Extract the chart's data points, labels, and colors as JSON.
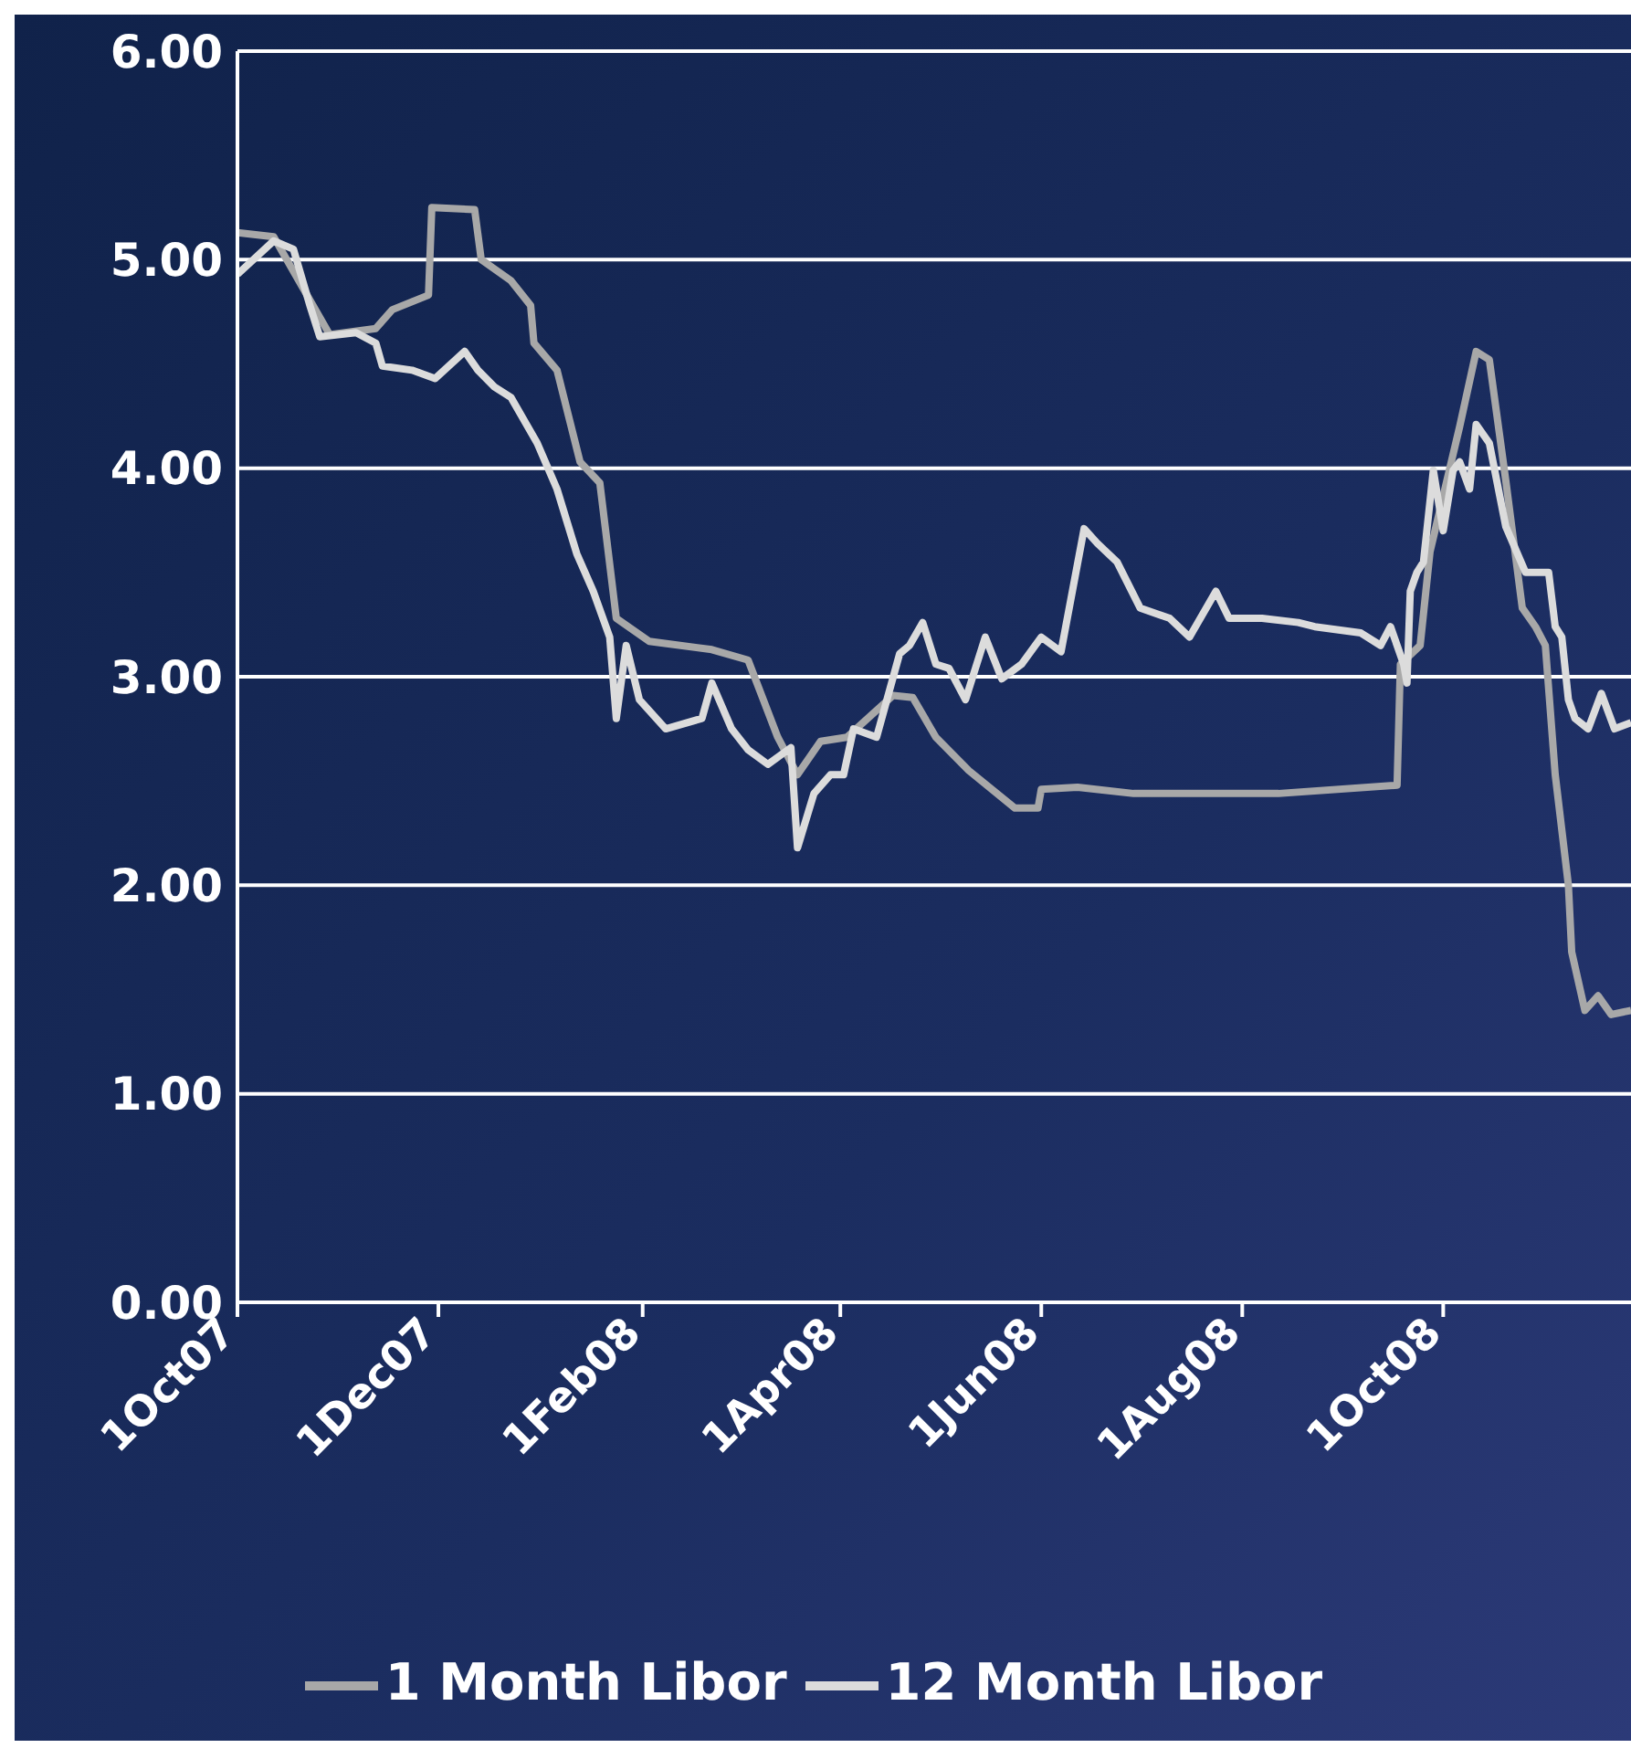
{
  "chart_data": {
    "type": "line",
    "xlim": [
      "2007-10-01",
      "2008-11-27"
    ],
    "ylim": [
      0,
      6
    ],
    "xticks": [
      {
        "value": "2007-10-01",
        "label": "1Oct07"
      },
      {
        "value": "2007-12-01",
        "label": "1Dec07"
      },
      {
        "value": "2008-02-01",
        "label": "1Feb08"
      },
      {
        "value": "2008-04-01",
        "label": "1Apr08"
      },
      {
        "value": "2008-06-01",
        "label": "1Jun08"
      },
      {
        "value": "2008-08-01",
        "label": "1Aug08"
      },
      {
        "value": "2008-10-01",
        "label": "1Oct08"
      }
    ],
    "yticks": [
      {
        "value": 0,
        "label": "0.00"
      },
      {
        "value": 1,
        "label": "1.00"
      },
      {
        "value": 2,
        "label": "2.00"
      },
      {
        "value": 3,
        "label": "3.00"
      },
      {
        "value": 4,
        "label": "4.00"
      },
      {
        "value": 5,
        "label": "5.00"
      },
      {
        "value": 6,
        "label": "6.00"
      }
    ],
    "grid": "y",
    "legend": "bottom",
    "series": [
      {
        "name": "1 Month Libor",
        "color": "#a8a8a8",
        "x": [
          "2007-10-01",
          "2007-10-12",
          "2007-10-29",
          "2007-11-12",
          "2007-11-17",
          "2007-11-28",
          "2007-11-29",
          "2007-12-12",
          "2007-12-14",
          "2007-12-23",
          "2007-12-29",
          "2007-12-30",
          "2008-01-06",
          "2008-01-13",
          "2008-01-19",
          "2008-01-24",
          "2008-02-03",
          "2008-02-22",
          "2008-03-04",
          "2008-03-13",
          "2008-03-19",
          "2008-03-26",
          "2008-04-03",
          "2008-04-17",
          "2008-04-23",
          "2008-04-30",
          "2008-05-10",
          "2008-05-24",
          "2008-05-31",
          "2008-06-01",
          "2008-06-12",
          "2008-06-29",
          "2008-08-12",
          "2008-09-17",
          "2008-09-18",
          "2008-09-24",
          "2008-09-27",
          "2008-10-06",
          "2008-10-11",
          "2008-10-15",
          "2008-10-20",
          "2008-10-25",
          "2008-10-29",
          "2008-11-01",
          "2008-11-04",
          "2008-11-08",
          "2008-11-09",
          "2008-11-13",
          "2008-11-17",
          "2008-11-21",
          "2008-11-27"
        ],
        "values": [
          5.13,
          5.11,
          4.64,
          4.67,
          4.76,
          4.83,
          5.25,
          5.24,
          5.0,
          4.9,
          4.78,
          4.6,
          4.47,
          4.03,
          3.93,
          3.28,
          3.17,
          3.13,
          3.08,
          2.71,
          2.53,
          2.69,
          2.71,
          2.91,
          2.9,
          2.71,
          2.55,
          2.37,
          2.37,
          2.46,
          2.47,
          2.44,
          2.44,
          2.48,
          3.06,
          3.15,
          3.6,
          4.2,
          4.56,
          4.52,
          3.94,
          3.33,
          3.24,
          3.15,
          2.53,
          2.0,
          1.68,
          1.4,
          1.47,
          1.38,
          1.4
        ]
      },
      {
        "name": "12 Month Libor",
        "color": "#dcdcdc",
        "x": [
          "2007-10-01",
          "2007-10-12",
          "2007-10-18",
          "2007-10-23",
          "2007-10-26",
          "2007-11-06",
          "2007-11-12",
          "2007-11-14",
          "2007-11-23",
          "2007-11-30",
          "2007-12-09",
          "2007-12-13",
          "2007-12-18",
          "2007-12-23",
          "2007-12-31",
          "2008-01-06",
          "2008-01-12",
          "2008-01-17",
          "2008-01-22",
          "2008-01-24",
          "2008-01-27",
          "2008-01-31",
          "2008-02-08",
          "2008-02-19",
          "2008-02-22",
          "2008-02-28",
          "2008-03-04",
          "2008-03-10",
          "2008-03-17",
          "2008-03-19",
          "2008-03-24",
          "2008-03-29",
          "2008-04-02",
          "2008-04-05",
          "2008-04-12",
          "2008-04-19",
          "2008-04-22",
          "2008-04-26",
          "2008-04-30",
          "2008-05-04",
          "2008-05-09",
          "2008-05-15",
          "2008-05-20",
          "2008-05-26",
          "2008-06-01",
          "2008-06-07",
          "2008-06-14",
          "2008-06-18",
          "2008-06-24",
          "2008-07-01",
          "2008-07-10",
          "2008-07-16",
          "2008-07-24",
          "2008-07-28",
          "2008-08-07",
          "2008-08-18",
          "2008-08-23",
          "2008-09-06",
          "2008-09-12",
          "2008-09-15",
          "2008-09-19",
          "2008-09-20",
          "2008-09-21",
          "2008-09-23",
          "2008-09-25",
          "2008-09-28",
          "2008-10-01",
          "2008-10-04",
          "2008-10-06",
          "2008-10-09",
          "2008-10-11",
          "2008-10-15",
          "2008-10-20",
          "2008-10-26",
          "2008-11-02",
          "2008-11-04",
          "2008-11-06",
          "2008-11-08",
          "2008-11-10",
          "2008-11-14",
          "2008-11-18",
          "2008-11-22",
          "2008-11-27"
        ],
        "values": [
          4.93,
          5.09,
          5.05,
          4.78,
          4.63,
          4.65,
          4.6,
          4.49,
          4.47,
          4.43,
          4.56,
          4.47,
          4.39,
          4.34,
          4.12,
          3.9,
          3.59,
          3.41,
          3.19,
          2.8,
          3.15,
          2.89,
          2.75,
          2.8,
          2.97,
          2.75,
          2.65,
          2.58,
          2.66,
          2.18,
          2.44,
          2.53,
          2.53,
          2.75,
          2.71,
          3.11,
          3.15,
          3.26,
          3.06,
          3.04,
          2.89,
          3.19,
          2.99,
          3.06,
          3.19,
          3.12,
          3.71,
          3.64,
          3.55,
          3.33,
          3.28,
          3.19,
          3.41,
          3.28,
          3.28,
          3.26,
          3.24,
          3.21,
          3.15,
          3.24,
          3.06,
          2.97,
          3.41,
          3.5,
          3.55,
          3.99,
          3.7,
          3.99,
          4.03,
          3.9,
          4.21,
          4.12,
          3.72,
          3.5,
          3.5,
          3.24,
          3.19,
          2.89,
          2.8,
          2.75,
          2.92,
          2.75,
          2.78
        ]
      }
    ]
  }
}
